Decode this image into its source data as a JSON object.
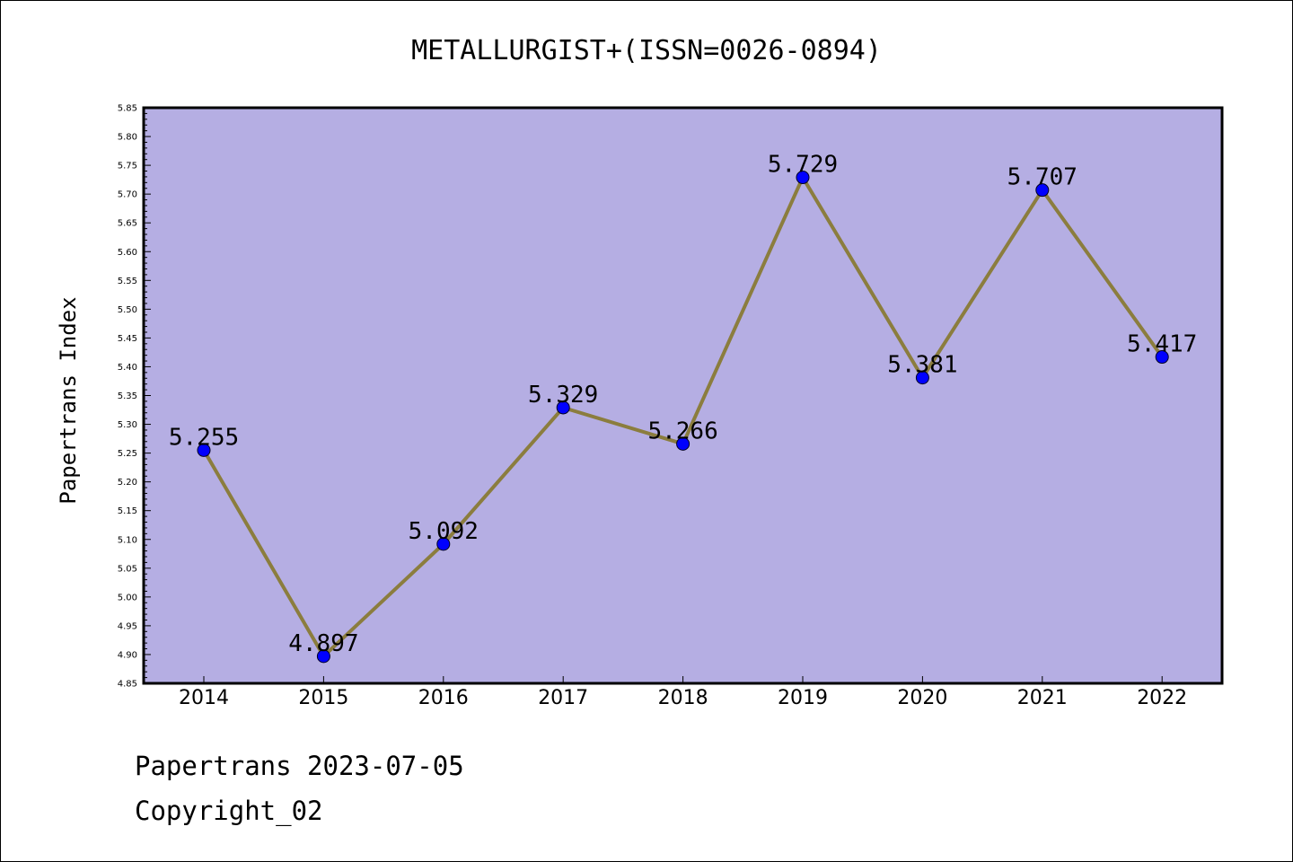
{
  "chart_data": {
    "type": "line",
    "title": "METALLURGIST+(ISSN=0026-0894)",
    "ylabel": "Papertrans Index",
    "xlabel": "",
    "categories": [
      "2014",
      "2015",
      "2016",
      "2017",
      "2018",
      "2019",
      "2020",
      "2021",
      "2022"
    ],
    "series": [
      {
        "values": [
          5.255,
          4.897,
          5.092,
          5.329,
          5.266,
          5.729,
          5.381,
          5.707,
          5.417
        ],
        "labels": [
          "5.255",
          "4.897",
          "5.092",
          "5.329",
          "5.266",
          "5.729",
          "5.381",
          "5.707",
          "5.417"
        ]
      }
    ],
    "ylim": [
      4.85,
      5.85
    ],
    "yticks": [
      "4.85",
      "4.90",
      "4.95",
      "5.00",
      "5.05",
      "5.10",
      "5.15",
      "5.20",
      "5.25",
      "5.30",
      "5.35",
      "5.40",
      "5.45",
      "5.50",
      "5.55",
      "5.60",
      "5.65",
      "5.70",
      "5.75",
      "5.80",
      "5.85"
    ],
    "grid": false,
    "colors": {
      "plot_background": "#b5aee3",
      "line": "#8b7d3e",
      "marker": "#0000ff"
    }
  },
  "footer": {
    "date_line": "Papertrans 2023-07-05",
    "copyright": "Copyright_02"
  }
}
